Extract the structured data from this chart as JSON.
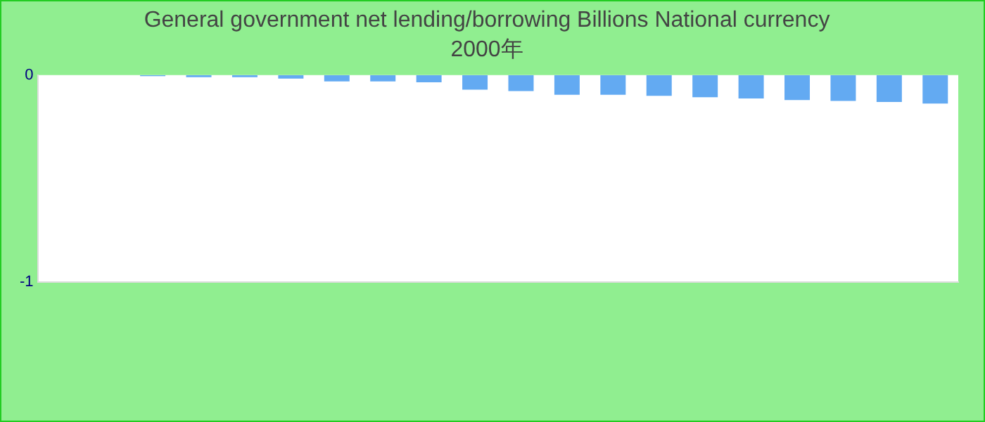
{
  "chart_data": {
    "type": "bar",
    "title": "General government net lending/borrowing Billions National currency",
    "subtitle": "2000年",
    "categories": [
      null,
      null,
      null,
      null,
      null,
      null,
      null,
      null,
      null,
      null,
      null,
      null,
      null,
      null,
      null,
      null,
      null,
      null,
      null,
      null
    ],
    "values": [
      0,
      0,
      -0.005,
      -0.01,
      -0.01,
      -0.017,
      -0.03,
      -0.03,
      -0.035,
      -0.07,
      -0.077,
      -0.095,
      -0.095,
      -0.1,
      -0.107,
      -0.113,
      -0.12,
      -0.125,
      -0.13,
      -0.137
    ],
    "color": "#63aaf2",
    "ylim": [
      -1,
      0
    ],
    "yticks": [
      -1,
      0
    ],
    "grid": false,
    "legend": false
  }
}
